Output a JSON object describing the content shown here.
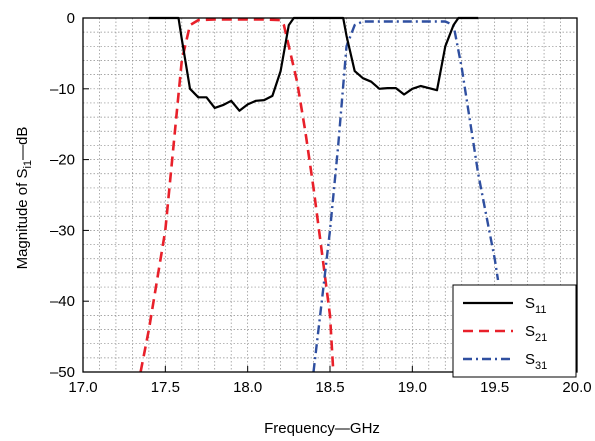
{
  "chart_data": {
    "type": "line",
    "xlabel": "Frequency—GHz",
    "ylabel": "Magnitude of S",
    "ylabel_sub": "i1",
    "ylabel_suffix": "—dB",
    "xlim": [
      17.0,
      20.0
    ],
    "ylim": [
      -50,
      0
    ],
    "x_ticks": [
      17.0,
      17.5,
      18.0,
      18.5,
      19.0,
      19.5,
      20.0
    ],
    "x_tick_labels": [
      "17.0",
      "17.5",
      "18.0",
      "18.5",
      "19.0",
      "19.5",
      "20.0"
    ],
    "y_ticks": [
      0,
      -10,
      -20,
      -30,
      -40,
      -50
    ],
    "y_tick_labels": [
      "0",
      "–10",
      "–20",
      "–30",
      "–40",
      "–50"
    ],
    "grid": true,
    "legend_position": "bottom-right",
    "series": [
      {
        "name": "S",
        "name_sub": "11",
        "color": "#000000",
        "dash": "solid",
        "x": [
          17.4,
          17.58,
          17.6,
          17.65,
          17.7,
          17.75,
          17.8,
          17.85,
          17.9,
          17.95,
          18.0,
          18.05,
          18.1,
          18.15,
          18.2,
          18.25,
          18.28,
          18.35,
          18.5,
          18.58,
          18.6,
          18.65,
          18.7,
          18.75,
          18.8,
          18.85,
          18.9,
          18.95,
          19.0,
          19.05,
          19.1,
          19.15,
          19.2,
          19.25,
          19.28,
          19.4
        ],
        "values": [
          0,
          0,
          -3,
          -10,
          -11.2,
          -11.2,
          -12.7,
          -12.3,
          -11.7,
          -13.1,
          -12.2,
          -11.7,
          -11.6,
          -11.0,
          -7.5,
          -1.0,
          0,
          0,
          0,
          0,
          -2.5,
          -7.5,
          -8.5,
          -9.0,
          -10.0,
          -9.9,
          -9.9,
          -10.8,
          -10.0,
          -9.6,
          -9.9,
          -10.2,
          -4.0,
          -1.0,
          0,
          0
        ]
      },
      {
        "name": "S",
        "name_sub": "21",
        "color": "#e8202a",
        "dash": "dashed",
        "x": [
          17.35,
          17.4,
          17.5,
          17.6,
          17.65,
          17.7,
          17.8,
          17.9,
          18.0,
          18.1,
          18.2,
          18.22,
          18.3,
          18.35,
          18.4,
          18.45,
          18.5,
          18.52
        ],
        "values": [
          -50,
          -44,
          -30,
          -6,
          -1.0,
          -0.3,
          -0.2,
          -0.2,
          -0.2,
          -0.2,
          -0.3,
          -1.0,
          -9,
          -16,
          -24,
          -33,
          -42,
          -50
        ]
      },
      {
        "name": "S",
        "name_sub": "31",
        "color": "#2f4fa0",
        "dash": "dashdot",
        "x": [
          18.4,
          18.45,
          18.5,
          18.55,
          18.6,
          18.65,
          18.7,
          18.8,
          18.9,
          19.0,
          19.1,
          19.2,
          19.25,
          19.3,
          19.4,
          19.5,
          19.52
        ],
        "values": [
          -50,
          -40,
          -30,
          -18,
          -4,
          -1.0,
          -0.5,
          -0.5,
          -0.5,
          -0.5,
          -0.5,
          -0.5,
          -1.0,
          -7,
          -22,
          -34,
          -37
        ]
      }
    ]
  }
}
